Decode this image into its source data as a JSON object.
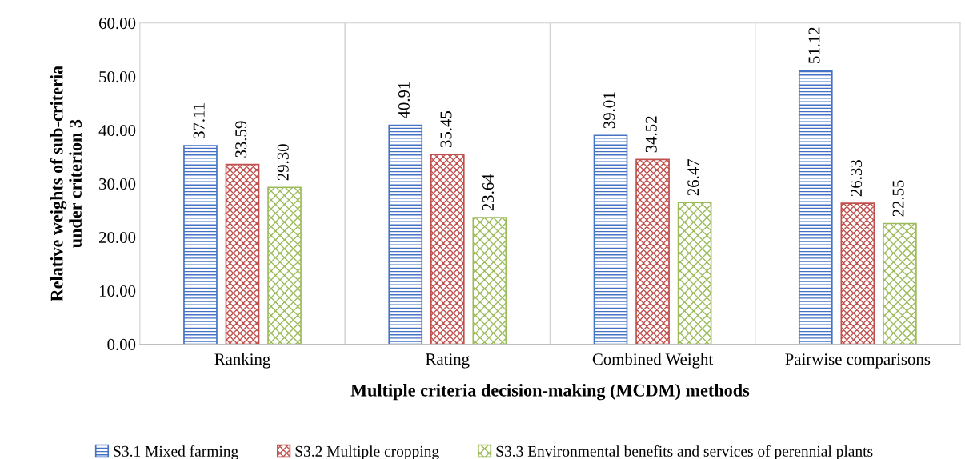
{
  "chart_data": {
    "type": "bar",
    "xlabel": "Multiple criteria decision-making (MCDM) methods",
    "ylabel": "Relative weights of sub-criteria\nunder criterion 3",
    "categories": [
      "Ranking",
      "Rating",
      "Combined Weight",
      "Pairwise comparisons"
    ],
    "series": [
      {
        "name": "S3.1 Mixed farming",
        "color": "#4472c4",
        "values": [
          37.11,
          40.91,
          39.01,
          51.12
        ],
        "value_labels": [
          "37.11",
          "40.91",
          "39.01",
          "51.12"
        ]
      },
      {
        "name": "S3.2 Multiple cropping",
        "color": "#c0504d",
        "values": [
          33.59,
          35.45,
          34.52,
          26.33
        ],
        "value_labels": [
          "33.59",
          "35.45",
          "34.52",
          "26.33"
        ]
      },
      {
        "name": "S3.3 Environmental benefits and services of perennial plants",
        "color": "#9bbb59",
        "values": [
          29.3,
          23.64,
          26.47,
          22.55
        ],
        "value_labels": [
          "29.30",
          "23.64",
          "26.47",
          "22.55"
        ]
      }
    ],
    "ylim": [
      0,
      60
    ],
    "yticks": [
      {
        "value": 0,
        "label": "0.00"
      },
      {
        "value": 10,
        "label": "10.00"
      },
      {
        "value": 20,
        "label": "20.00"
      },
      {
        "value": 30,
        "label": "30.00"
      },
      {
        "value": 40,
        "label": "40.00"
      },
      {
        "value": 50,
        "label": "50.00"
      },
      {
        "value": 60,
        "label": "60.00"
      }
    ],
    "grid": "x",
    "legend": "bottom"
  }
}
